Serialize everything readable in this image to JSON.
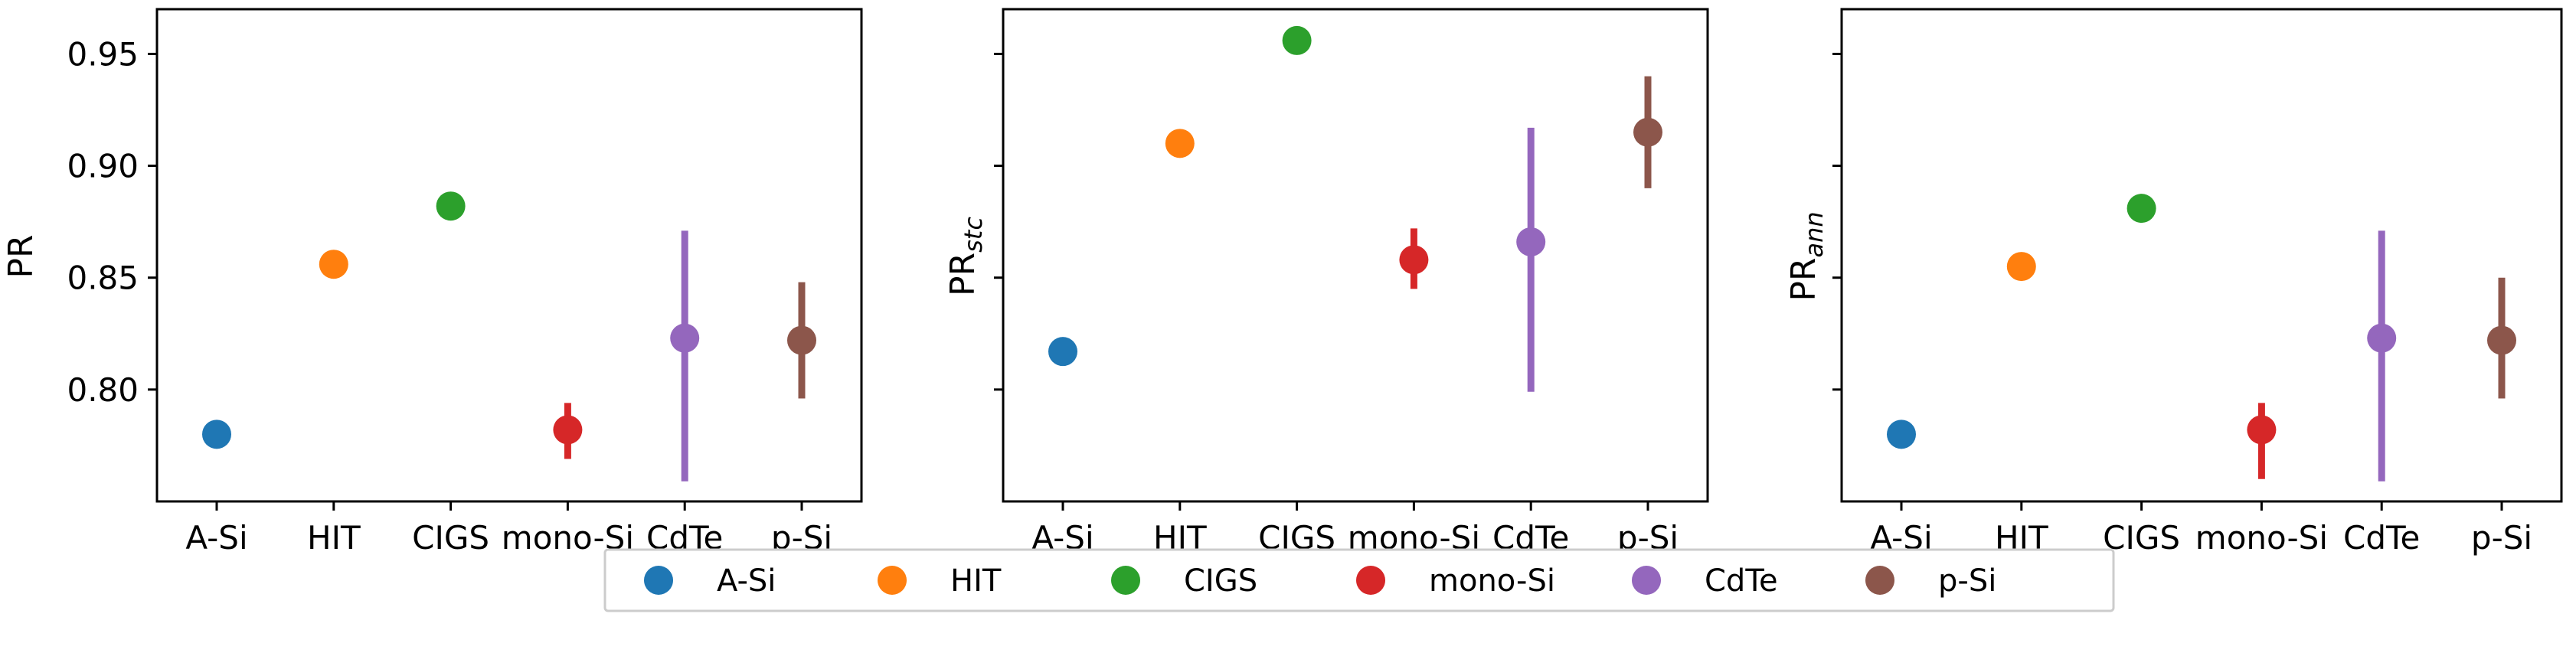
{
  "chart_data": [
    {
      "type": "scatter",
      "title": "",
      "xlabel": "",
      "ylabel": "PR",
      "ylabel_sub": "",
      "ylim": [
        0.75,
        0.97
      ],
      "yticks": [
        "0.80",
        "0.85",
        "0.90",
        "0.95"
      ],
      "ytick_values": [
        0.8,
        0.85,
        0.9,
        0.95
      ],
      "show_ytick_labels": true,
      "categories": [
        "A-Si",
        "HIT",
        "CIGS",
        "mono-Si",
        "CdTe",
        "p-Si"
      ],
      "series": [
        {
          "name": "A-Si",
          "value": 0.78,
          "err_low": 0.78,
          "err_high": 0.78
        },
        {
          "name": "HIT",
          "value": 0.856,
          "err_low": 0.856,
          "err_high": 0.856
        },
        {
          "name": "CIGS",
          "value": 0.882,
          "err_low": 0.882,
          "err_high": 0.882
        },
        {
          "name": "mono-Si",
          "value": 0.782,
          "err_low": 0.769,
          "err_high": 0.794
        },
        {
          "name": "CdTe",
          "value": 0.823,
          "err_low": 0.759,
          "err_high": 0.871
        },
        {
          "name": "p-Si",
          "value": 0.822,
          "err_low": 0.796,
          "err_high": 0.848
        }
      ]
    },
    {
      "type": "scatter",
      "title": "",
      "xlabel": "",
      "ylabel": "PR",
      "ylabel_sub": "stc",
      "ylim": [
        0.75,
        0.97
      ],
      "yticks": [
        "0.80",
        "0.85",
        "0.90",
        "0.95"
      ],
      "ytick_values": [
        0.8,
        0.85,
        0.9,
        0.95
      ],
      "show_ytick_labels": false,
      "categories": [
        "A-Si",
        "HIT",
        "CIGS",
        "mono-Si",
        "CdTe",
        "p-Si"
      ],
      "series": [
        {
          "name": "A-Si",
          "value": 0.817,
          "err_low": 0.817,
          "err_high": 0.817
        },
        {
          "name": "HIT",
          "value": 0.91,
          "err_low": 0.91,
          "err_high": 0.91
        },
        {
          "name": "CIGS",
          "value": 0.956,
          "err_low": 0.956,
          "err_high": 0.956
        },
        {
          "name": "mono-Si",
          "value": 0.858,
          "err_low": 0.845,
          "err_high": 0.872
        },
        {
          "name": "CdTe",
          "value": 0.866,
          "err_low": 0.799,
          "err_high": 0.917
        },
        {
          "name": "p-Si",
          "value": 0.915,
          "err_low": 0.89,
          "err_high": 0.94
        }
      ]
    },
    {
      "type": "scatter",
      "title": "",
      "xlabel": "",
      "ylabel": "PR",
      "ylabel_sub": "ann",
      "ylim": [
        0.75,
        0.97
      ],
      "yticks": [
        "0.80",
        "0.85",
        "0.90",
        "0.95"
      ],
      "ytick_values": [
        0.8,
        0.85,
        0.9,
        0.95
      ],
      "show_ytick_labels": false,
      "categories": [
        "A-Si",
        "HIT",
        "CIGS",
        "mono-Si",
        "CdTe",
        "p-Si"
      ],
      "series": [
        {
          "name": "A-Si",
          "value": 0.78,
          "err_low": 0.78,
          "err_high": 0.78
        },
        {
          "name": "HIT",
          "value": 0.855,
          "err_low": 0.855,
          "err_high": 0.855
        },
        {
          "name": "CIGS",
          "value": 0.881,
          "err_low": 0.881,
          "err_high": 0.881
        },
        {
          "name": "mono-Si",
          "value": 0.782,
          "err_low": 0.76,
          "err_high": 0.794
        },
        {
          "name": "CdTe",
          "value": 0.823,
          "err_low": 0.759,
          "err_high": 0.871
        },
        {
          "name": "p-Si",
          "value": 0.822,
          "err_low": 0.796,
          "err_high": 0.85
        }
      ]
    }
  ],
  "legend": {
    "placement": "bottom-center",
    "entries": [
      {
        "label": "A-Si",
        "color": "#1f77b4"
      },
      {
        "label": "HIT",
        "color": "#ff7f0e"
      },
      {
        "label": "CIGS",
        "color": "#2ca02c"
      },
      {
        "label": "mono-Si",
        "color": "#d62728"
      },
      {
        "label": "CdTe",
        "color": "#9467bd"
      },
      {
        "label": "p-Si",
        "color": "#8c564b"
      }
    ]
  },
  "colors": {
    "A-Si": "#1f77b4",
    "HIT": "#ff7f0e",
    "CIGS": "#2ca02c",
    "mono-Si": "#d62728",
    "CdTe": "#9467bd",
    "p-Si": "#8c564b"
  }
}
